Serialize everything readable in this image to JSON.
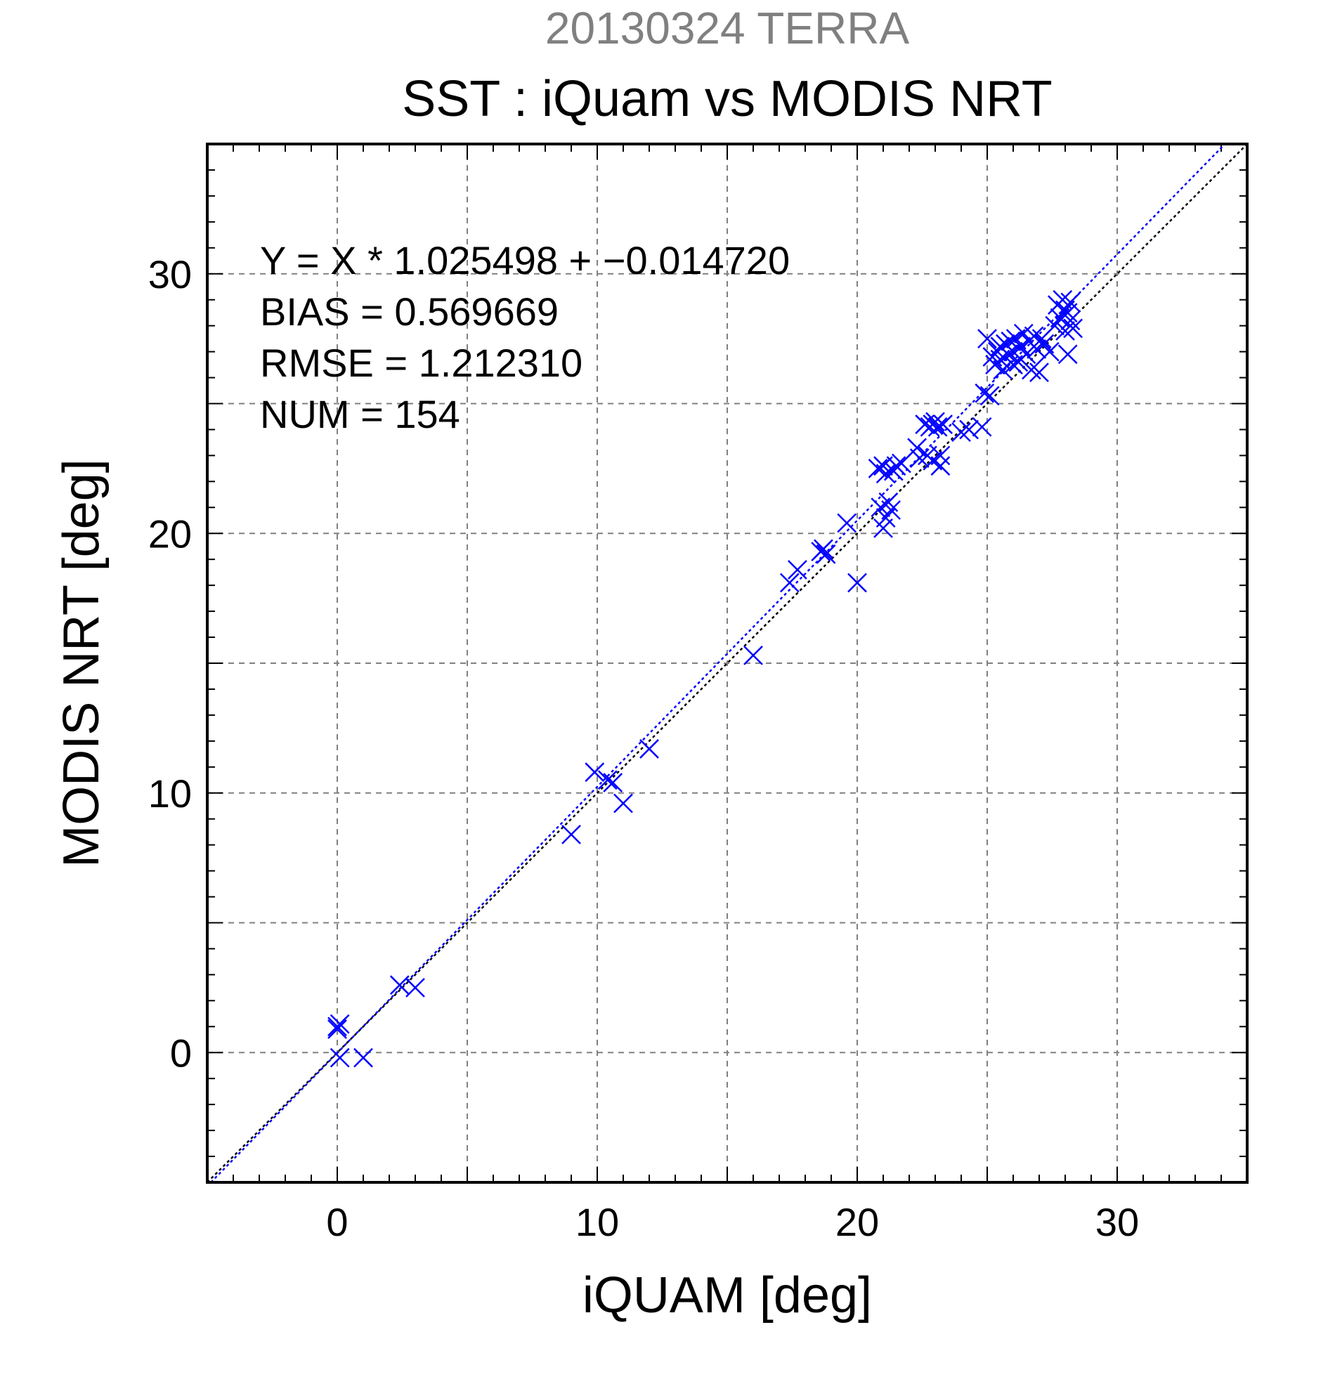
{
  "chart_data": {
    "type": "scatter",
    "suptitle": "20130324 TERRA",
    "title": "SST : iQuam vs MODIS NRT",
    "xlabel": "iQUAM [deg]",
    "ylabel": "MODIS NRT [deg]",
    "xlim": [
      -5,
      35
    ],
    "ylim": [
      -5,
      35
    ],
    "xticks": [
      0,
      10,
      20,
      30
    ],
    "yticks": [
      0,
      10,
      20,
      30
    ],
    "x_minor_step": 1,
    "y_minor_step": 1,
    "grid_step": 5,
    "grid": true,
    "marker": "x",
    "annotation_lines": [
      "Y = X * 1.025498 + −0.014720",
      "BIAS = 0.569669",
      "RMSE = 1.212310",
      "NUM = 154"
    ],
    "fit": {
      "slope": 1.025498,
      "intercept": -0.01472
    },
    "one_to_one_line": true,
    "colors": {
      "points": "#0000ff",
      "fit_line": "#0000ff",
      "identity_line": "#000000",
      "suptitle": "#808080",
      "grid": "#808080"
    },
    "points": [
      [
        0.0,
        1.0
      ],
      [
        0.1,
        1.1
      ],
      [
        0.0,
        0.9
      ],
      [
        0.1,
        -0.2
      ],
      [
        1.0,
        -0.2
      ],
      [
        2.4,
        2.6
      ],
      [
        3.0,
        2.5
      ],
      [
        9.0,
        8.4
      ],
      [
        9.9,
        10.8
      ],
      [
        10.4,
        10.5
      ],
      [
        10.6,
        10.4
      ],
      [
        11.0,
        9.6
      ],
      [
        12.0,
        11.7
      ],
      [
        16.0,
        15.3
      ],
      [
        17.4,
        18.1
      ],
      [
        17.7,
        18.6
      ],
      [
        18.6,
        19.3
      ],
      [
        18.7,
        19.4
      ],
      [
        18.8,
        19.2
      ],
      [
        19.6,
        20.4
      ],
      [
        20.0,
        18.1
      ],
      [
        20.8,
        22.5
      ],
      [
        20.9,
        21.0
      ],
      [
        21.0,
        20.2
      ],
      [
        21.0,
        22.6
      ],
      [
        21.1,
        20.6
      ],
      [
        21.1,
        22.3
      ],
      [
        21.2,
        21.2
      ],
      [
        21.3,
        20.9
      ],
      [
        21.4,
        22.4
      ],
      [
        21.5,
        22.6
      ],
      [
        21.7,
        22.7
      ],
      [
        22.3,
        23.3
      ],
      [
        22.4,
        22.9
      ],
      [
        22.6,
        24.2
      ],
      [
        22.7,
        23.0
      ],
      [
        22.8,
        24.1
      ],
      [
        22.9,
        22.8
      ],
      [
        22.9,
        24.2
      ],
      [
        23.0,
        24.3
      ],
      [
        23.1,
        24.1
      ],
      [
        23.2,
        22.6
      ],
      [
        23.2,
        23.0
      ],
      [
        23.3,
        24.2
      ],
      [
        24.0,
        23.9
      ],
      [
        24.3,
        24.0
      ],
      [
        24.8,
        24.1
      ],
      [
        24.9,
        25.4
      ],
      [
        25.0,
        27.5
      ],
      [
        25.1,
        25.3
      ],
      [
        25.2,
        26.8
      ],
      [
        25.3,
        26.5
      ],
      [
        25.4,
        27.0
      ],
      [
        25.5,
        26.7
      ],
      [
        25.6,
        26.3
      ],
      [
        25.7,
        27.3
      ],
      [
        25.8,
        26.9
      ],
      [
        25.9,
        27.4
      ],
      [
        26.0,
        27.0
      ],
      [
        26.1,
        27.5
      ],
      [
        26.2,
        26.6
      ],
      [
        26.3,
        27.2
      ],
      [
        26.4,
        27.7
      ],
      [
        26.5,
        26.9
      ],
      [
        26.6,
        27.4
      ],
      [
        26.7,
        26.3
      ],
      [
        26.8,
        27.6
      ],
      [
        26.9,
        27.1
      ],
      [
        27.0,
        26.2
      ],
      [
        27.1,
        27.5
      ],
      [
        27.2,
        27.3
      ],
      [
        27.4,
        27.0
      ],
      [
        27.6,
        28.0
      ],
      [
        27.7,
        28.8
      ],
      [
        27.8,
        28.3
      ],
      [
        27.9,
        29.0
      ],
      [
        28.0,
        27.8
      ],
      [
        28.1,
        26.9
      ],
      [
        28.1,
        28.5
      ],
      [
        28.2,
        28.2
      ],
      [
        28.2,
        28.9
      ],
      [
        28.3,
        27.9
      ],
      [
        28.0,
        28.6
      ],
      [
        26.0,
        26.5
      ],
      [
        25.5,
        27.2
      ]
    ]
  }
}
